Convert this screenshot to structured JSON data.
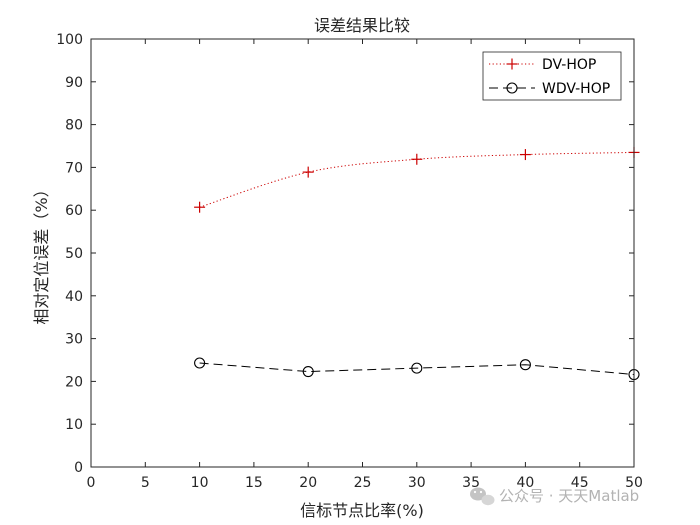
{
  "chart_data": {
    "type": "line",
    "title": "误差结果比较",
    "xlabel": "信标节点比率(%)",
    "ylabel": "相对定位误差（%）",
    "xlim": [
      0,
      50
    ],
    "ylim": [
      0,
      100
    ],
    "xticks": [
      0,
      5,
      10,
      15,
      20,
      25,
      30,
      35,
      40,
      45,
      50
    ],
    "yticks": [
      0,
      10,
      20,
      30,
      40,
      50,
      60,
      70,
      80,
      90,
      100
    ],
    "grid": false,
    "legend_position": "top-right",
    "x": [
      10,
      20,
      30,
      40,
      50
    ],
    "series": [
      {
        "name": "DV-HOP",
        "values": [
          60.7,
          68.9,
          71.9,
          73.0,
          73.5
        ],
        "color": "#cc0000",
        "line_style": "dotted",
        "marker": "plus",
        "smooth": true
      },
      {
        "name": "WDV-HOP",
        "values": [
          24.3,
          22.3,
          23.1,
          23.9,
          21.6
        ],
        "color": "#000000",
        "line_style": "dashed",
        "marker": "circle",
        "smooth": false
      }
    ]
  },
  "watermark": {
    "text": "公众号 · 天天Matlab",
    "icon": "wechat-icon"
  }
}
